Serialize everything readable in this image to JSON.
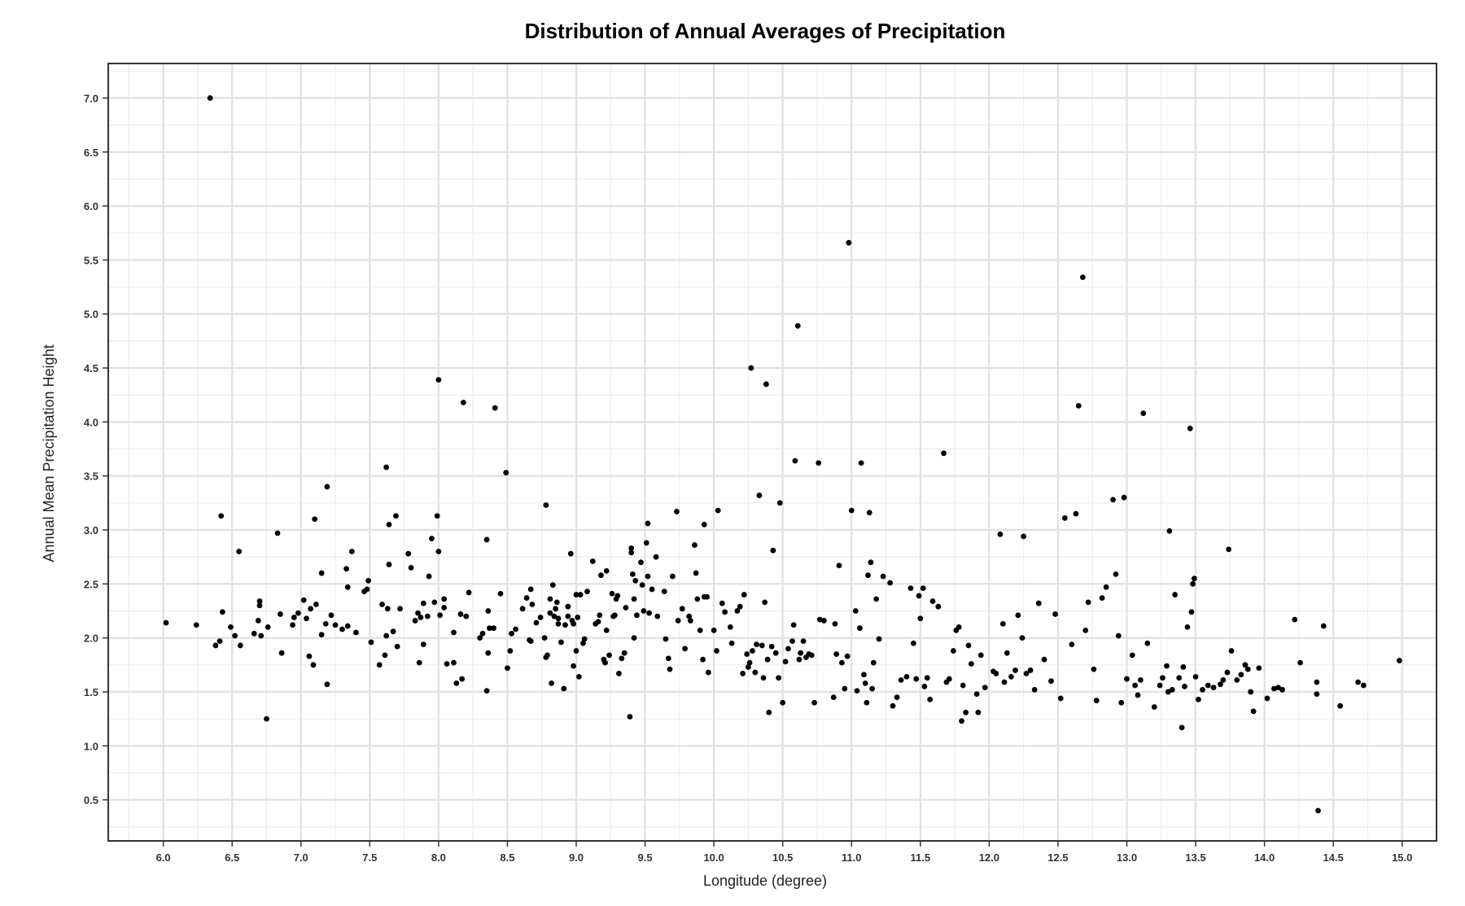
{
  "chart_data": {
    "type": "scatter",
    "title": "Distribution of Annual Averages of Precipitation",
    "xlabel": "Longitude (degree)",
    "ylabel": "Annual Mean Precipitation Height",
    "xlim": [
      5.6,
      15.25
    ],
    "ylim": [
      0.12,
      7.32
    ],
    "xticks": [
      "6.0",
      "6.5",
      "7.0",
      "7.5",
      "8.0",
      "8.5",
      "9.0",
      "9.5",
      "10.0",
      "10.5",
      "11.0",
      "11.5",
      "12.0",
      "12.5",
      "13.0",
      "13.5",
      "14.0",
      "14.5",
      "15.0"
    ],
    "yticks": [
      "0.5",
      "1.0",
      "1.5",
      "2.0",
      "2.5",
      "3.0",
      "3.5",
      "4.0",
      "4.5",
      "5.0",
      "5.5",
      "6.0",
      "6.5",
      "7.0"
    ],
    "grid": true,
    "point_color": "#000000",
    "points": [
      [
        6.02,
        2.14
      ],
      [
        6.24,
        2.12
      ],
      [
        6.34,
        7.0
      ],
      [
        6.38,
        1.93
      ],
      [
        6.41,
        1.97
      ],
      [
        6.42,
        3.13
      ],
      [
        6.43,
        2.24
      ],
      [
        6.49,
        2.1
      ],
      [
        6.52,
        2.02
      ],
      [
        6.55,
        2.8
      ],
      [
        6.56,
        1.93
      ],
      [
        6.66,
        2.04
      ],
      [
        6.69,
        2.16
      ],
      [
        6.7,
        2.3
      ],
      [
        6.7,
        2.34
      ],
      [
        6.71,
        2.02
      ],
      [
        6.75,
        1.25
      ],
      [
        6.76,
        2.1
      ],
      [
        6.83,
        2.97
      ],
      [
        6.85,
        2.22
      ],
      [
        6.86,
        1.86
      ],
      [
        6.94,
        2.12
      ],
      [
        6.95,
        2.19
      ],
      [
        6.98,
        2.23
      ],
      [
        7.02,
        2.35
      ],
      [
        7.04,
        2.18
      ],
      [
        7.06,
        1.83
      ],
      [
        7.07,
        2.27
      ],
      [
        7.09,
        1.75
      ],
      [
        7.1,
        3.1
      ],
      [
        7.11,
        2.31
      ],
      [
        7.15,
        2.03
      ],
      [
        7.15,
        2.6
      ],
      [
        7.18,
        2.13
      ],
      [
        7.19,
        1.57
      ],
      [
        7.19,
        3.4
      ],
      [
        7.22,
        2.21
      ],
      [
        7.25,
        2.12
      ],
      [
        7.3,
        2.08
      ],
      [
        7.33,
        2.64
      ],
      [
        7.34,
        2.47
      ],
      [
        7.34,
        2.11
      ],
      [
        7.37,
        2.8
      ],
      [
        7.4,
        2.05
      ],
      [
        7.46,
        2.43
      ],
      [
        7.48,
        2.45
      ],
      [
        7.49,
        2.53
      ],
      [
        7.51,
        1.96
      ],
      [
        7.57,
        1.75
      ],
      [
        7.59,
        2.31
      ],
      [
        7.61,
        1.84
      ],
      [
        7.62,
        3.58
      ],
      [
        7.62,
        2.02
      ],
      [
        7.63,
        2.27
      ],
      [
        7.64,
        3.05
      ],
      [
        7.64,
        2.68
      ],
      [
        7.67,
        2.06
      ],
      [
        7.69,
        3.13
      ],
      [
        7.7,
        1.92
      ],
      [
        7.72,
        2.27
      ],
      [
        7.78,
        2.78
      ],
      [
        7.8,
        2.65
      ],
      [
        7.83,
        2.16
      ],
      [
        7.85,
        2.23
      ],
      [
        7.86,
        1.77
      ],
      [
        7.87,
        2.19
      ],
      [
        7.89,
        2.32
      ],
      [
        7.89,
        1.94
      ],
      [
        7.92,
        2.2
      ],
      [
        7.93,
        2.57
      ],
      [
        7.95,
        2.92
      ],
      [
        7.97,
        2.33
      ],
      [
        7.99,
        3.13
      ],
      [
        8.0,
        2.8
      ],
      [
        8.0,
        4.39
      ],
      [
        8.01,
        2.21
      ],
      [
        8.04,
        2.36
      ],
      [
        8.04,
        2.28
      ],
      [
        8.06,
        1.76
      ],
      [
        8.11,
        2.05
      ],
      [
        8.11,
        1.77
      ],
      [
        8.13,
        1.58
      ],
      [
        8.16,
        2.22
      ],
      [
        8.17,
        1.62
      ],
      [
        8.18,
        4.18
      ],
      [
        8.2,
        2.2
      ],
      [
        8.22,
        2.42
      ],
      [
        8.3,
        2.0
      ],
      [
        8.32,
        2.04
      ],
      [
        8.35,
        1.51
      ],
      [
        8.35,
        2.91
      ],
      [
        8.36,
        2.25
      ],
      [
        8.36,
        1.86
      ],
      [
        8.37,
        2.09
      ],
      [
        8.4,
        2.09
      ],
      [
        8.41,
        4.13
      ],
      [
        8.45,
        2.41
      ],
      [
        8.49,
        3.53
      ],
      [
        8.5,
        1.72
      ],
      [
        8.52,
        1.88
      ],
      [
        8.53,
        2.04
      ],
      [
        8.56,
        2.08
      ],
      [
        8.61,
        2.27
      ],
      [
        8.64,
        2.37
      ],
      [
        8.66,
        1.98
      ],
      [
        8.67,
        2.45
      ],
      [
        8.67,
        1.97
      ],
      [
        8.68,
        2.31
      ],
      [
        8.71,
        2.14
      ],
      [
        8.74,
        2.19
      ],
      [
        8.77,
        2.0
      ],
      [
        8.78,
        3.23
      ],
      [
        8.78,
        1.82
      ],
      [
        8.79,
        1.84
      ],
      [
        8.81,
        2.36
      ],
      [
        8.81,
        2.23
      ],
      [
        8.82,
        1.58
      ],
      [
        8.83,
        2.49
      ],
      [
        8.84,
        2.2
      ],
      [
        8.85,
        2.27
      ],
      [
        8.86,
        2.33
      ],
      [
        8.87,
        2.13
      ],
      [
        8.87,
        2.18
      ],
      [
        8.89,
        1.96
      ],
      [
        8.91,
        1.53
      ],
      [
        8.92,
        2.12
      ],
      [
        8.94,
        2.2
      ],
      [
        8.94,
        2.29
      ],
      [
        8.96,
        2.78
      ],
      [
        8.97,
        2.16
      ],
      [
        8.98,
        2.13
      ],
      [
        8.98,
        1.74
      ],
      [
        9.0,
        1.88
      ],
      [
        9.0,
        2.4
      ],
      [
        9.01,
        2.19
      ],
      [
        9.02,
        1.64
      ],
      [
        9.03,
        2.4
      ],
      [
        9.05,
        1.95
      ],
      [
        9.06,
        1.99
      ],
      [
        9.08,
        2.43
      ],
      [
        9.12,
        2.71
      ],
      [
        9.14,
        2.13
      ],
      [
        9.16,
        2.15
      ],
      [
        9.17,
        2.21
      ],
      [
        9.18,
        2.58
      ],
      [
        9.2,
        1.8
      ],
      [
        9.21,
        1.77
      ],
      [
        9.22,
        2.07
      ],
      [
        9.22,
        2.62
      ],
      [
        9.24,
        1.84
      ],
      [
        9.26,
        2.41
      ],
      [
        9.27,
        2.2
      ],
      [
        9.28,
        2.21
      ],
      [
        9.29,
        2.36
      ],
      [
        9.3,
        2.39
      ],
      [
        9.31,
        1.67
      ],
      [
        9.33,
        1.81
      ],
      [
        9.35,
        1.86
      ],
      [
        9.36,
        2.28
      ],
      [
        9.39,
        1.27
      ],
      [
        9.4,
        2.79
      ],
      [
        9.4,
        2.83
      ],
      [
        9.41,
        2.59
      ],
      [
        9.42,
        2.0
      ],
      [
        9.42,
        2.36
      ],
      [
        9.43,
        2.53
      ],
      [
        9.44,
        2.21
      ],
      [
        9.47,
        2.7
      ],
      [
        9.48,
        2.49
      ],
      [
        9.49,
        2.25
      ],
      [
        9.51,
        2.88
      ],
      [
        9.52,
        3.06
      ],
      [
        9.52,
        2.57
      ],
      [
        9.53,
        2.23
      ],
      [
        9.55,
        2.45
      ],
      [
        9.58,
        2.75
      ],
      [
        9.59,
        2.2
      ],
      [
        9.64,
        2.43
      ],
      [
        9.65,
        1.99
      ],
      [
        9.67,
        1.81
      ],
      [
        9.68,
        1.71
      ],
      [
        9.7,
        2.57
      ],
      [
        9.73,
        3.17
      ],
      [
        9.74,
        2.16
      ],
      [
        9.77,
        2.27
      ],
      [
        9.79,
        1.9
      ],
      [
        9.82,
        2.2
      ],
      [
        9.83,
        2.16
      ],
      [
        9.86,
        2.86
      ],
      [
        9.87,
        2.6
      ],
      [
        9.88,
        2.36
      ],
      [
        9.9,
        2.07
      ],
      [
        9.92,
        1.8
      ],
      [
        9.93,
        2.38
      ],
      [
        9.93,
        3.05
      ],
      [
        9.95,
        2.38
      ],
      [
        9.96,
        1.68
      ],
      [
        10.0,
        2.07
      ],
      [
        10.02,
        1.88
      ],
      [
        10.03,
        3.18
      ],
      [
        10.06,
        2.32
      ],
      [
        10.08,
        2.24
      ],
      [
        10.12,
        2.1
      ],
      [
        10.13,
        1.95
      ],
      [
        10.17,
        2.25
      ],
      [
        10.19,
        2.29
      ],
      [
        10.21,
        1.67
      ],
      [
        10.22,
        2.4
      ],
      [
        10.24,
        1.85
      ],
      [
        10.25,
        1.73
      ],
      [
        10.26,
        1.77
      ],
      [
        10.27,
        4.5
      ],
      [
        10.28,
        1.88
      ],
      [
        10.3,
        1.68
      ],
      [
        10.31,
        1.94
      ],
      [
        10.33,
        3.32
      ],
      [
        10.35,
        1.93
      ],
      [
        10.36,
        1.63
      ],
      [
        10.37,
        2.33
      ],
      [
        10.38,
        4.35
      ],
      [
        10.39,
        1.8
      ],
      [
        10.4,
        1.31
      ],
      [
        10.42,
        1.92
      ],
      [
        10.43,
        2.81
      ],
      [
        10.45,
        1.86
      ],
      [
        10.47,
        1.63
      ],
      [
        10.48,
        3.25
      ],
      [
        10.5,
        1.4
      ],
      [
        10.52,
        1.78
      ],
      [
        10.54,
        1.9
      ],
      [
        10.57,
        1.97
      ],
      [
        10.58,
        2.12
      ],
      [
        10.59,
        3.64
      ],
      [
        10.61,
        4.89
      ],
      [
        10.62,
        1.8
      ],
      [
        10.63,
        1.86
      ],
      [
        10.65,
        1.97
      ],
      [
        10.67,
        1.82
      ],
      [
        10.69,
        1.85
      ],
      [
        10.71,
        1.84
      ],
      [
        10.73,
        1.4
      ],
      [
        10.76,
        3.62
      ],
      [
        10.77,
        2.17
      ],
      [
        10.8,
        2.16
      ],
      [
        10.87,
        1.45
      ],
      [
        10.88,
        2.13
      ],
      [
        10.89,
        1.85
      ],
      [
        10.91,
        2.67
      ],
      [
        10.93,
        1.77
      ],
      [
        10.95,
        1.53
      ],
      [
        10.97,
        1.83
      ],
      [
        10.98,
        5.66
      ],
      [
        11.0,
        3.18
      ],
      [
        11.03,
        2.25
      ],
      [
        11.04,
        1.51
      ],
      [
        11.06,
        2.09
      ],
      [
        11.07,
        3.62
      ],
      [
        11.09,
        1.66
      ],
      [
        11.1,
        1.58
      ],
      [
        11.11,
        1.4
      ],
      [
        11.12,
        2.58
      ],
      [
        11.13,
        3.16
      ],
      [
        11.14,
        2.7
      ],
      [
        11.15,
        1.53
      ],
      [
        11.16,
        1.77
      ],
      [
        11.18,
        2.36
      ],
      [
        11.2,
        1.99
      ],
      [
        11.23,
        2.57
      ],
      [
        11.28,
        2.51
      ],
      [
        11.3,
        1.37
      ],
      [
        11.33,
        1.45
      ],
      [
        11.36,
        1.61
      ],
      [
        11.4,
        1.64
      ],
      [
        11.43,
        2.46
      ],
      [
        11.45,
        1.95
      ],
      [
        11.47,
        1.62
      ],
      [
        11.49,
        2.39
      ],
      [
        11.5,
        2.18
      ],
      [
        11.52,
        2.46
      ],
      [
        11.53,
        1.55
      ],
      [
        11.55,
        1.63
      ],
      [
        11.57,
        1.43
      ],
      [
        11.59,
        2.34
      ],
      [
        11.63,
        2.29
      ],
      [
        11.67,
        3.71
      ],
      [
        11.69,
        1.59
      ],
      [
        11.71,
        1.62
      ],
      [
        11.74,
        1.88
      ],
      [
        11.76,
        2.07
      ],
      [
        11.78,
        2.1
      ],
      [
        11.8,
        1.23
      ],
      [
        11.81,
        1.56
      ],
      [
        11.83,
        1.31
      ],
      [
        11.85,
        1.93
      ],
      [
        11.87,
        1.76
      ],
      [
        11.91,
        1.48
      ],
      [
        11.92,
        1.31
      ],
      [
        11.94,
        1.84
      ],
      [
        11.97,
        1.54
      ],
      [
        12.03,
        1.69
      ],
      [
        12.05,
        1.67
      ],
      [
        12.08,
        2.96
      ],
      [
        12.1,
        2.13
      ],
      [
        12.11,
        1.59
      ],
      [
        12.13,
        1.86
      ],
      [
        12.16,
        1.64
      ],
      [
        12.19,
        1.7
      ],
      [
        12.21,
        2.21
      ],
      [
        12.24,
        2.0
      ],
      [
        12.25,
        2.94
      ],
      [
        12.27,
        1.67
      ],
      [
        12.3,
        1.7
      ],
      [
        12.33,
        1.52
      ],
      [
        12.36,
        2.32
      ],
      [
        12.4,
        1.8
      ],
      [
        12.45,
        1.6
      ],
      [
        12.48,
        2.22
      ],
      [
        12.52,
        1.44
      ],
      [
        12.55,
        3.11
      ],
      [
        12.6,
        1.94
      ],
      [
        12.63,
        3.15
      ],
      [
        12.65,
        4.15
      ],
      [
        12.68,
        5.34
      ],
      [
        12.7,
        2.07
      ],
      [
        12.72,
        2.33
      ],
      [
        12.76,
        1.71
      ],
      [
        12.78,
        1.42
      ],
      [
        12.82,
        2.37
      ],
      [
        12.85,
        2.47
      ],
      [
        12.9,
        3.28
      ],
      [
        12.92,
        2.59
      ],
      [
        12.94,
        2.02
      ],
      [
        12.96,
        1.4
      ],
      [
        12.98,
        3.3
      ],
      [
        13.0,
        1.62
      ],
      [
        13.04,
        1.84
      ],
      [
        13.06,
        1.56
      ],
      [
        13.08,
        1.47
      ],
      [
        13.1,
        1.61
      ],
      [
        13.12,
        4.08
      ],
      [
        13.15,
        1.95
      ],
      [
        13.2,
        1.36
      ],
      [
        13.24,
        1.56
      ],
      [
        13.26,
        1.63
      ],
      [
        13.29,
        1.74
      ],
      [
        13.3,
        1.5
      ],
      [
        13.31,
        2.99
      ],
      [
        13.33,
        1.52
      ],
      [
        13.35,
        2.4
      ],
      [
        13.38,
        1.63
      ],
      [
        13.4,
        1.17
      ],
      [
        13.41,
        1.73
      ],
      [
        13.42,
        1.55
      ],
      [
        13.44,
        2.1
      ],
      [
        13.46,
        3.94
      ],
      [
        13.47,
        2.24
      ],
      [
        13.48,
        2.5
      ],
      [
        13.49,
        2.55
      ],
      [
        13.5,
        1.64
      ],
      [
        13.52,
        1.43
      ],
      [
        13.55,
        1.52
      ],
      [
        13.59,
        1.56
      ],
      [
        13.63,
        1.54
      ],
      [
        13.68,
        1.57
      ],
      [
        13.7,
        1.61
      ],
      [
        13.73,
        1.68
      ],
      [
        13.74,
        2.82
      ],
      [
        13.76,
        1.88
      ],
      [
        13.8,
        1.61
      ],
      [
        13.83,
        1.66
      ],
      [
        13.86,
        1.75
      ],
      [
        13.88,
        1.71
      ],
      [
        13.9,
        1.5
      ],
      [
        13.92,
        1.32
      ],
      [
        13.96,
        1.72
      ],
      [
        14.02,
        1.44
      ],
      [
        14.07,
        1.53
      ],
      [
        14.1,
        1.54
      ],
      [
        14.13,
        1.52
      ],
      [
        14.22,
        2.17
      ],
      [
        14.26,
        1.77
      ],
      [
        14.38,
        1.59
      ],
      [
        14.38,
        1.48
      ],
      [
        14.39,
        0.4
      ],
      [
        14.43,
        2.11
      ],
      [
        14.55,
        1.37
      ],
      [
        14.68,
        1.59
      ],
      [
        14.72,
        1.56
      ],
      [
        14.98,
        1.79
      ]
    ]
  }
}
